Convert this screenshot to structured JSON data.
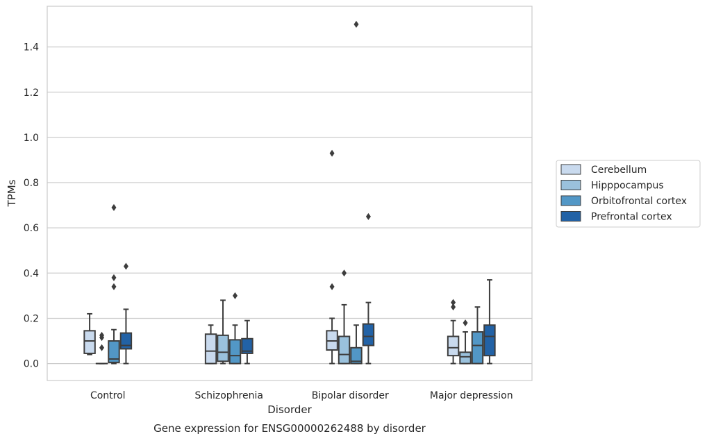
{
  "chart_data": {
    "type": "box",
    "caption": "Gene expression for ENSG00000262488 by disorder",
    "xlabel": "Disorder",
    "ylabel": "TPMs",
    "ylim": [
      -0.075,
      1.58
    ],
    "yticks": [
      0.0,
      0.2,
      0.4,
      0.6,
      0.8,
      1.0,
      1.2,
      1.4
    ],
    "ytick_labels": [
      "0.0",
      "0.2",
      "0.4",
      "0.6",
      "0.8",
      "1.0",
      "1.2",
      "1.4"
    ],
    "grid": "horizontal",
    "legend_position": "right",
    "categories": [
      "Control",
      "Schizophrenia",
      "Bipolar disorder",
      "Major depression"
    ],
    "series": [
      {
        "name": "Cerebellum",
        "color": "#c9daee",
        "boxes": [
          {
            "whislo": 0.04,
            "q1": 0.045,
            "med": 0.1,
            "q3": 0.145,
            "whishi": 0.22,
            "fliers": []
          },
          {
            "whislo": 0.0,
            "q1": 0.0,
            "med": 0.055,
            "q3": 0.13,
            "whishi": 0.17,
            "fliers": []
          },
          {
            "whislo": 0.0,
            "q1": 0.06,
            "med": 0.1,
            "q3": 0.145,
            "whishi": 0.2,
            "fliers": [
              0.34,
              0.93
            ]
          },
          {
            "whislo": 0.0,
            "q1": 0.035,
            "med": 0.07,
            "q3": 0.12,
            "whishi": 0.19,
            "fliers": [
              0.25,
              0.27
            ]
          }
        ]
      },
      {
        "name": "Hipppocampus",
        "color": "#9ac1dc",
        "boxes": [
          {
            "whislo": 0.0,
            "q1": 0.0,
            "med": 0.0,
            "q3": 0.0,
            "whishi": 0.0,
            "fliers": [
              0.07,
              0.115,
              0.125
            ]
          },
          {
            "whislo": 0.0,
            "q1": 0.01,
            "med": 0.05,
            "q3": 0.125,
            "whishi": 0.28,
            "fliers": []
          },
          {
            "whislo": 0.0,
            "q1": 0.0,
            "med": 0.04,
            "q3": 0.12,
            "whishi": 0.26,
            "fliers": [
              0.4
            ]
          },
          {
            "whislo": 0.0,
            "q1": 0.0,
            "med": 0.03,
            "q3": 0.05,
            "whishi": 0.14,
            "fliers": [
              0.18
            ]
          }
        ]
      },
      {
        "name": "Orbitofrontal cortex",
        "color": "#5297c6",
        "boxes": [
          {
            "whislo": 0.0,
            "q1": 0.005,
            "med": 0.02,
            "q3": 0.1,
            "whishi": 0.15,
            "fliers": [
              0.34,
              0.38,
              0.69
            ]
          },
          {
            "whislo": 0.0,
            "q1": 0.0,
            "med": 0.035,
            "q3": 0.105,
            "whishi": 0.17,
            "fliers": [
              0.3
            ]
          },
          {
            "whislo": 0.0,
            "q1": 0.0,
            "med": 0.01,
            "q3": 0.07,
            "whishi": 0.17,
            "fliers": [
              1.5
            ]
          },
          {
            "whislo": 0.0,
            "q1": 0.0,
            "med": 0.08,
            "q3": 0.14,
            "whishi": 0.25,
            "fliers": []
          }
        ]
      },
      {
        "name": "Prefrontal cortex",
        "color": "#2262a6",
        "boxes": [
          {
            "whislo": 0.0,
            "q1": 0.065,
            "med": 0.08,
            "q3": 0.135,
            "whishi": 0.24,
            "fliers": [
              0.43
            ]
          },
          {
            "whislo": 0.0,
            "q1": 0.045,
            "med": 0.055,
            "q3": 0.11,
            "whishi": 0.19,
            "fliers": []
          },
          {
            "whislo": 0.0,
            "q1": 0.08,
            "med": 0.12,
            "q3": 0.175,
            "whishi": 0.27,
            "fliers": [
              0.65
            ]
          },
          {
            "whislo": 0.0,
            "q1": 0.035,
            "med": 0.12,
            "q3": 0.17,
            "whishi": 0.37,
            "fliers": []
          }
        ]
      }
    ]
  },
  "colors": {
    "grid": "#cccccc",
    "frame": "#cccccc",
    "box_edge": "#3d3d3d",
    "text": "#262626"
  }
}
